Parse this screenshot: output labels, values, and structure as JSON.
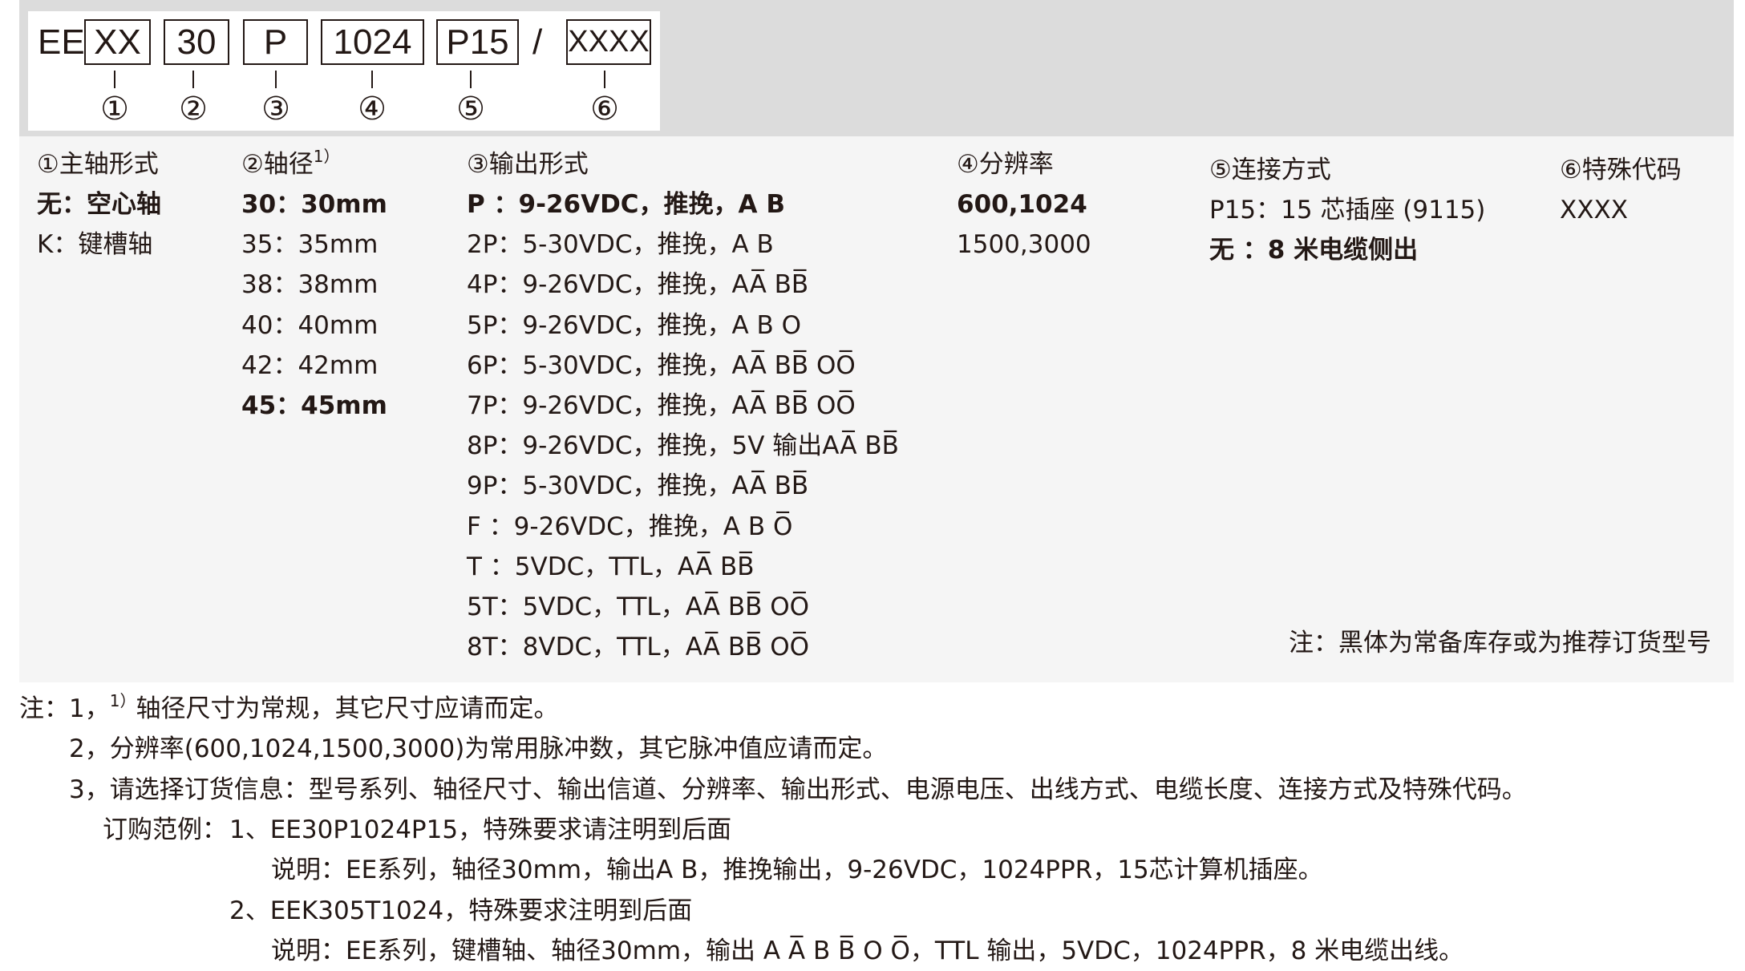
{
  "code": {
    "prefix": "EE",
    "segments": [
      "XX",
      "30",
      "P",
      "1024",
      "P15",
      "XXXX"
    ],
    "slash": "/",
    "markers": [
      "①",
      "②",
      "③",
      "④",
      "⑤",
      "⑥"
    ]
  },
  "columns": [
    {
      "header": "①主轴形式",
      "items": [
        {
          "text": "无：空心轴",
          "bold": true
        },
        {
          "text": "K：键槽轴",
          "bold": false
        }
      ]
    },
    {
      "header": "②轴径",
      "header_sup": "1）",
      "items": [
        {
          "text": "30：30mm",
          "bold": true
        },
        {
          "text": "35：35mm",
          "bold": false
        },
        {
          "text": "38：38mm",
          "bold": false
        },
        {
          "text": "40：40mm",
          "bold": false
        },
        {
          "text": "42：42mm",
          "bold": false
        },
        {
          "text": "45：45mm",
          "bold": true
        }
      ]
    },
    {
      "header": "③输出形式",
      "items": [
        {
          "text": "P ：9-26VDC，推挽，A B",
          "bold": true
        },
        {
          "text": "2P：5-30VDC，推挽，A B",
          "bold": false
        },
        {
          "text": "4P：9-26VDC，推挽，AA̅ BB̅",
          "bold": false
        },
        {
          "text": "5P：9-26VDC，推挽，A B O",
          "bold": false
        },
        {
          "text": "6P：5-30VDC，推挽，AA̅ BB̅ OO̅",
          "bold": false
        },
        {
          "text": "7P：9-26VDC，推挽，AA̅ BB̅ OO̅",
          "bold": false
        },
        {
          "text": "8P：9-26VDC，推挽，5V 输出AA̅ BB̅",
          "bold": false
        },
        {
          "text": "9P：5-30VDC，推挽，AA̅ BB̅",
          "bold": false
        },
        {
          "text": "F ：9-26VDC，推挽，A B O̅",
          "bold": false
        },
        {
          "text": "T ：5VDC，TTL，AA̅ BB̅",
          "bold": false
        },
        {
          "text": "5T：5VDC，TTL，AA̅ BB̅ OO̅",
          "bold": false
        },
        {
          "text": "8T：8VDC，TTL，AA̅ BB̅ OO̅",
          "bold": false
        }
      ]
    },
    {
      "header": "④分辨率",
      "items": [
        {
          "text": "600,1024",
          "bold": true
        },
        {
          "text": "1500,3000",
          "bold": false
        }
      ]
    },
    {
      "header": "⑤连接方式",
      "items": [
        {
          "text": "P15：15 芯插座 (9115)",
          "bold": false
        },
        {
          "text": "无 ：8 米电缆侧出",
          "bold": true
        }
      ]
    },
    {
      "header": "⑥特殊代码",
      "items": [
        {
          "text": "XXXX",
          "bold": false
        }
      ]
    }
  ],
  "panel_note": "注：黑体为常备库存或为推荐订货型号",
  "notes": {
    "n1_prefix": "注：1，",
    "n1_sup": "1）",
    "n1_text": "轴径尺寸为常规，其它尺寸应请而定。",
    "n2": "2，分辨率(600,1024,1500,3000)为常用脉冲数，其它脉冲值应请而定。",
    "n3": "3，请选择订货信息：型号系列、轴径尺寸、输出信道、分辨率、输出形式、电源电压、出线方式、电缆长度、连接方式及特殊代码。",
    "ex_label": "订购范例：",
    "ex1": "1、EE30P1024P15，特殊要求请注明到后面",
    "ex1_desc": "说明：EE系列，轴径30mm，输出A B，推挽输出，9-26VDC，1024PPR，15芯计算机插座。",
    "ex2": "2、EEK305T1024，特殊要求注明到后面",
    "ex2_desc": "说明：EE系列，键槽轴、轴径30mm，输出 A A̅ B B̅ O O̅，TTL 输出，5VDC，1024PPR，8 米电缆出线。"
  }
}
